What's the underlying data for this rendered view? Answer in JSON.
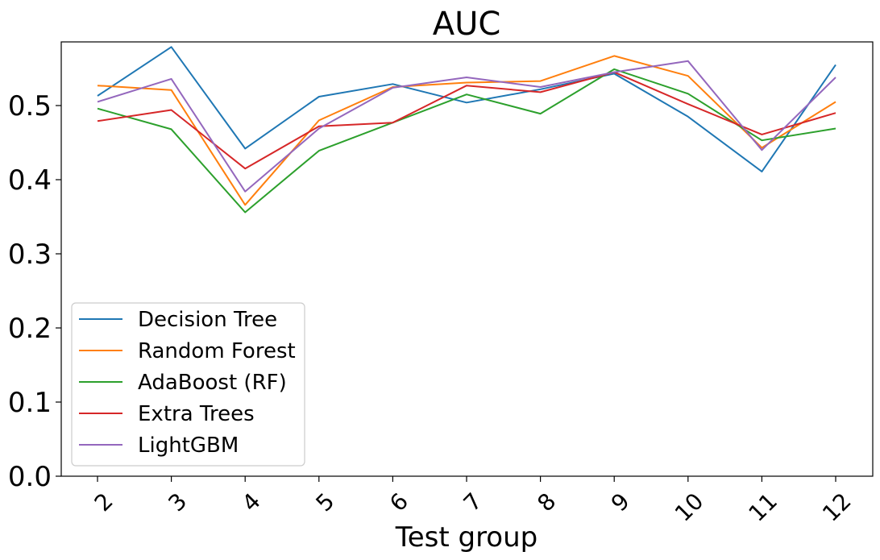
{
  "chart_data": {
    "type": "line",
    "title": "AUC",
    "xlabel": "Test group",
    "ylabel": "",
    "categories": [
      "2",
      "3",
      "4",
      "5",
      "6",
      "7",
      "8",
      "9",
      "10",
      "11",
      "12"
    ],
    "ylim": [
      0.0,
      0.59
    ],
    "yticks": [
      "0.0",
      "0.1",
      "0.2",
      "0.3",
      "0.4",
      "0.5"
    ],
    "grid": false,
    "legend_position": "lower-left",
    "series": [
      {
        "name": "Decision Tree",
        "color": "#1f77b4",
        "values": [
          0.513,
          0.579,
          0.442,
          0.512,
          0.529,
          0.504,
          0.522,
          0.543,
          0.485,
          0.411,
          0.555
        ]
      },
      {
        "name": "Random Forest",
        "color": "#ff7f0e",
        "values": [
          0.527,
          0.521,
          0.366,
          0.48,
          0.525,
          0.531,
          0.533,
          0.567,
          0.54,
          0.443,
          0.505
        ]
      },
      {
        "name": "AdaBoost (RF)",
        "color": "#2ca02c",
        "values": [
          0.496,
          0.468,
          0.356,
          0.439,
          0.477,
          0.515,
          0.489,
          0.549,
          0.516,
          0.453,
          0.469
        ]
      },
      {
        "name": "Extra Trees",
        "color": "#d62728",
        "values": [
          0.479,
          0.494,
          0.415,
          0.472,
          0.477,
          0.527,
          0.518,
          0.545,
          0.502,
          0.461,
          0.49
        ]
      },
      {
        "name": "LightGBM",
        "color": "#9467bd",
        "values": [
          0.505,
          0.536,
          0.384,
          0.469,
          0.524,
          0.538,
          0.525,
          0.545,
          0.56,
          0.44,
          0.538
        ]
      }
    ]
  }
}
